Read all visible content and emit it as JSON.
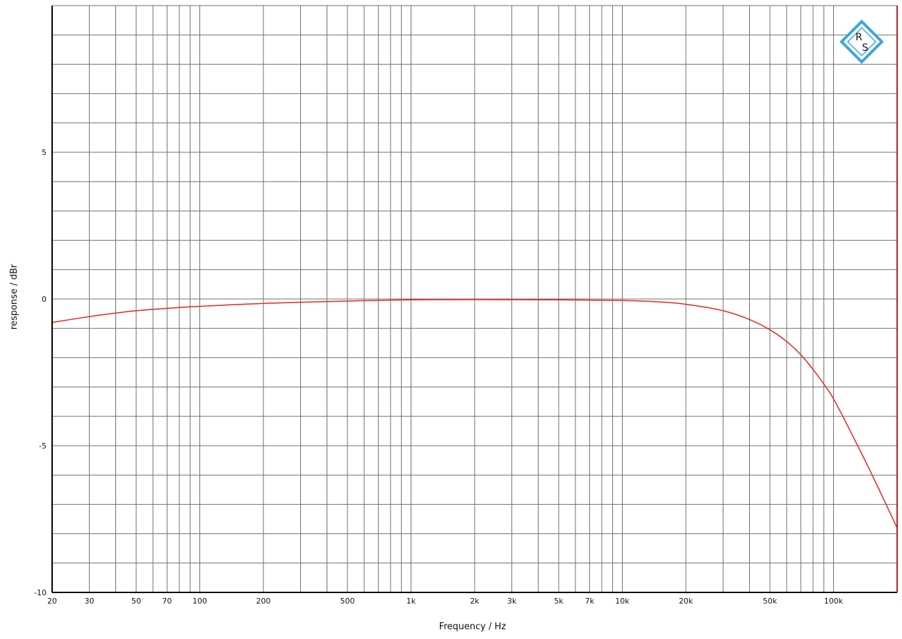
{
  "chart_data": {
    "type": "line",
    "xlabel": "Frequency / Hz",
    "ylabel": "response / dBr",
    "x_scale": "log",
    "xlim": [
      20,
      200000
    ],
    "ylim": [
      -10,
      10
    ],
    "grid": true,
    "x_ticks": [
      {
        "value": 20,
        "label": "20"
      },
      {
        "value": 30,
        "label": "30"
      },
      {
        "value": 50,
        "label": "50"
      },
      {
        "value": 70,
        "label": "70"
      },
      {
        "value": 100,
        "label": "100"
      },
      {
        "value": 200,
        "label": "200"
      },
      {
        "value": 500,
        "label": "500"
      },
      {
        "value": 1000,
        "label": "1k"
      },
      {
        "value": 2000,
        "label": "2k"
      },
      {
        "value": 3000,
        "label": "3k"
      },
      {
        "value": 5000,
        "label": "5k"
      },
      {
        "value": 7000,
        "label": "7k"
      },
      {
        "value": 10000,
        "label": "10k"
      },
      {
        "value": 20000,
        "label": "20k"
      },
      {
        "value": 50000,
        "label": "50k"
      },
      {
        "value": 100000,
        "label": "100k"
      }
    ],
    "y_ticks": [
      {
        "value": 5,
        "label": "5"
      },
      {
        "value": 0,
        "label": "0"
      },
      {
        "value": -5,
        "label": "-5"
      },
      {
        "value": -10,
        "label": "-10"
      }
    ],
    "series": [
      {
        "color": "#e8231f",
        "x": [
          20,
          30,
          40,
          50,
          70,
          100,
          200,
          500,
          1000,
          2000,
          5000,
          10000,
          15000,
          20000,
          30000,
          40000,
          50000,
          60000,
          70000,
          80000,
          90000,
          100000,
          120000,
          150000,
          200000
        ],
        "y": [
          -0.8,
          -0.6,
          -0.48,
          -0.4,
          -0.32,
          -0.25,
          -0.15,
          -0.07,
          -0.03,
          -0.02,
          -0.03,
          -0.05,
          -0.1,
          -0.18,
          -0.4,
          -0.7,
          -1.05,
          -1.45,
          -1.9,
          -2.4,
          -2.9,
          -3.4,
          -4.5,
          -5.9,
          -7.8
        ]
      }
    ],
    "colors": {
      "grid": "#6f6f6f",
      "frame": "#000000",
      "right_border": "#b41f28",
      "logo": "#3aa6dc"
    }
  },
  "logo": {
    "icon": "rohde-schwarz-logo",
    "text_top": "R",
    "text_bottom": "S"
  }
}
